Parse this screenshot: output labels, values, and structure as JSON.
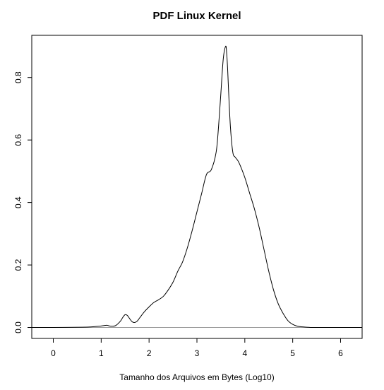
{
  "chart_data": {
    "type": "line",
    "title": "PDF Linux Kernel",
    "xlabel": "Tamanho dos Arquivos em Bytes (Log10)",
    "ylabel": "",
    "xlim": [
      -0.45,
      6.45
    ],
    "ylim": [
      -0.035,
      0.935
    ],
    "xticks": [
      0,
      1,
      2,
      3,
      4,
      5,
      6
    ],
    "yticks": [
      0.0,
      0.2,
      0.4,
      0.6,
      0.8
    ],
    "xtick_labels": [
      "0",
      "1",
      "2",
      "3",
      "4",
      "5",
      "6"
    ],
    "ytick_labels": [
      "0.0",
      "0.2",
      "0.4",
      "0.6",
      "0.8"
    ],
    "grid": false,
    "baseline_y": 0,
    "series": [
      {
        "x": [
          -0.45,
          0.0,
          0.6,
          0.8,
          0.95,
          1.05,
          1.12,
          1.2,
          1.3,
          1.4,
          1.45,
          1.5,
          1.55,
          1.6,
          1.65,
          1.7,
          1.75,
          1.8,
          1.9,
          2.0,
          2.1,
          2.2,
          2.3,
          2.4,
          2.5,
          2.6,
          2.7,
          2.8,
          2.9,
          3.0,
          3.1,
          3.2,
          3.3,
          3.4,
          3.45,
          3.5,
          3.55,
          3.6,
          3.62,
          3.64,
          3.66,
          3.7,
          3.75,
          3.8,
          3.85,
          3.9,
          4.0,
          4.1,
          4.2,
          4.3,
          4.4,
          4.5,
          4.6,
          4.7,
          4.8,
          4.9,
          5.0,
          5.1,
          5.2,
          5.3,
          5.4,
          5.5,
          5.7,
          5.9,
          6.45
        ],
        "y": [
          0.0,
          0.0,
          0.001,
          0.002,
          0.004,
          0.006,
          0.007,
          0.004,
          0.006,
          0.02,
          0.032,
          0.041,
          0.038,
          0.027,
          0.018,
          0.016,
          0.02,
          0.03,
          0.05,
          0.066,
          0.08,
          0.089,
          0.1,
          0.12,
          0.145,
          0.18,
          0.21,
          0.255,
          0.31,
          0.37,
          0.43,
          0.49,
          0.505,
          0.56,
          0.64,
          0.75,
          0.86,
          0.9,
          0.88,
          0.83,
          0.76,
          0.64,
          0.56,
          0.545,
          0.535,
          0.52,
          0.48,
          0.43,
          0.38,
          0.32,
          0.25,
          0.18,
          0.12,
          0.075,
          0.045,
          0.022,
          0.01,
          0.004,
          0.002,
          0.001,
          0.0,
          0.0,
          0.0,
          0.0,
          0.0
        ]
      }
    ]
  }
}
